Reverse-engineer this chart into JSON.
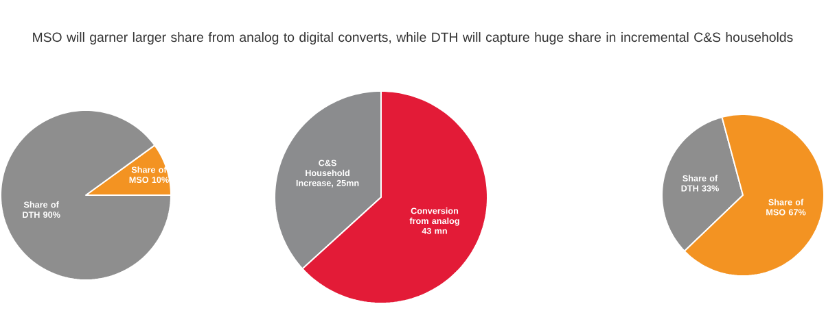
{
  "chart_data": [
    {
      "type": "pie",
      "categories": [
        "Share of MSO 10%",
        "Share of DTH 90%"
      ],
      "values": [
        10,
        90
      ],
      "colors": [
        "#f39322",
        "#8e8e8e"
      ]
    },
    {
      "type": "pie",
      "title": "MSO will garner larger share from analog to digital converts, while DTH will capture huge share in incremental C&S households",
      "categories": [
        "C&S Household Increase, 25mn",
        "Conversion from analog 43 mn"
      ],
      "values": [
        25,
        43
      ],
      "colors": [
        "#8b8c8e",
        "#e31b37"
      ]
    },
    {
      "type": "pie",
      "categories": [
        "Share of DTH 33%",
        "Share of MSO 67%"
      ],
      "values": [
        33,
        67
      ],
      "colors": [
        "#8e8e8e",
        "#f39322"
      ]
    }
  ]
}
